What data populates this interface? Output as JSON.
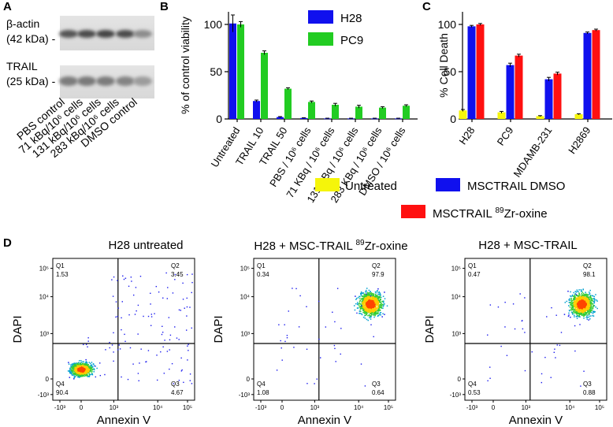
{
  "panel_labels": {
    "a": "A",
    "b": "B",
    "c": "C",
    "d": "D"
  },
  "colors": {
    "blue": "#1010ee",
    "green": "#22cc22",
    "yellow": "#f5f50a",
    "red": "#ff1010",
    "black": "#000000"
  },
  "chart_data": [
    {
      "panel": "A",
      "type": "western-blot",
      "bands": [
        {
          "label_line1": "β-actin",
          "label_line2": "(42 kDa) -",
          "intensities": [
            0.85,
            0.9,
            0.95,
            0.9,
            0.5
          ]
        },
        {
          "label_line1": "TRAIL",
          "label_line2": "(25 kDa) -",
          "intensities": [
            0.6,
            0.62,
            0.6,
            0.55,
            0.4
          ]
        }
      ],
      "lanes": [
        "PBS control",
        "71 kBq/10⁶ cells",
        "131 kBq/10⁶ cells",
        "283 kBq/10⁶ cells",
        "DMSO control"
      ]
    },
    {
      "panel": "B",
      "type": "bar",
      "ylabel": "% of control viability",
      "ylim": [
        0,
        110
      ],
      "yticks": [
        "0",
        "50",
        "100"
      ],
      "categories": [
        "Untreated",
        "TRAIL 10",
        "TRAIL 50",
        "PBS / 10⁶ cells",
        "71 KBq / 10⁶ cells",
        "131 KBq / 10⁶ cells",
        "283 KBq / 10⁶ cells",
        "DMSO / 10⁶ cells"
      ],
      "series": [
        {
          "name": "H28",
          "color": "#1010ee",
          "values": [
            101,
            19,
            2,
            1,
            0.5,
            0.5,
            0.5,
            0.5
          ],
          "errors": [
            9,
            1,
            0.5,
            0.3,
            0.3,
            0.3,
            0.3,
            0.3
          ]
        },
        {
          "name": "PC9",
          "color": "#22cc22",
          "values": [
            100,
            70,
            32,
            18,
            15,
            13,
            12,
            14
          ],
          "errors": [
            3,
            2,
            1,
            1,
            1.5,
            1.5,
            1,
            1
          ]
        }
      ]
    },
    {
      "panel": "C",
      "type": "bar",
      "ylabel": "% Cell Death",
      "ylim": [
        0,
        110
      ],
      "yticks": [
        "0",
        "50",
        "100"
      ],
      "categories": [
        "H28",
        "PC9",
        "MDAMB-231",
        "H2869"
      ],
      "series": [
        {
          "name": "Untreated",
          "color": "#f5f50a",
          "values": [
            9,
            7,
            3,
            5
          ],
          "errors": [
            1,
            1,
            0.5,
            0.5
          ]
        },
        {
          "name": "MSCTRAIL DMSO",
          "color": "#1010ee",
          "values": [
            98,
            57,
            42,
            91
          ],
          "errors": [
            1,
            2,
            2,
            1
          ]
        },
        {
          "name": "MSCTRAIL ⁸⁹Zr-oxine",
          "color": "#ff1010",
          "values": [
            100,
            67,
            48,
            94
          ],
          "errors": [
            1,
            1.5,
            1.5,
            1
          ]
        }
      ],
      "legend": {
        "untreated": "Untreated",
        "dmso": "MSCTRAIL DMSO",
        "zr_prefix": "MSCTRAIL ",
        "zr_sup": "89",
        "zr_suffix": "Zr-oxine"
      }
    },
    {
      "panel": "D",
      "type": "scatter",
      "xlabel": "Annexin V",
      "ylabel": "DAPI",
      "xticks": [
        "-10³",
        "0",
        "10³",
        "10⁴",
        "10⁵"
      ],
      "yticks": [
        "10⁵",
        "10⁴",
        "10³",
        "0",
        "-10³"
      ],
      "plots": [
        {
          "title": "H28 untreated",
          "quadrants": {
            "q1": "Q1",
            "q1_value": "1.53",
            "q2": "Q2",
            "q2_value": "3.45",
            "q3": "Q3",
            "q3_value": "4.67",
            "q4": "Q4",
            "q4_value": "90.4"
          }
        },
        {
          "title_prefix": "H28 + MSC-TRAIL ",
          "title_sup": "89",
          "title_suffix": "Zr-oxine",
          "quadrants": {
            "q1": "Q1",
            "q1_value": "0.34",
            "q2": "Q2",
            "q2_value": "97.9",
            "q3": "Q3",
            "q3_value": "0.64",
            "q4": "Q4",
            "q4_value": "1.08"
          }
        },
        {
          "title": "H28 + MSC-TRAIL",
          "quadrants": {
            "q1": "Q1",
            "q1_value": "0.47",
            "q2": "Q2",
            "q2_value": "98.1",
            "q3": "Q3",
            "q3_value": "0.88",
            "q4": "Q4",
            "q4_value": "0.53"
          }
        }
      ]
    }
  ]
}
